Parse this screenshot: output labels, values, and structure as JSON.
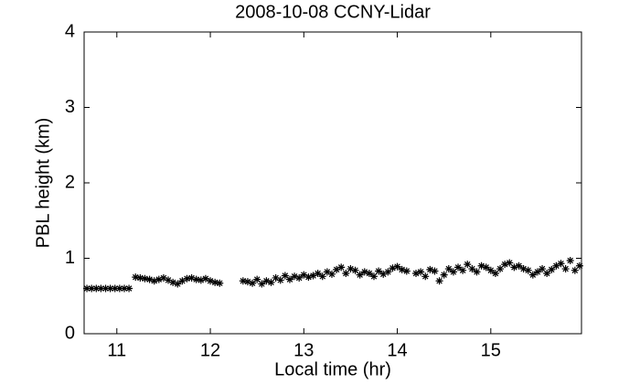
{
  "chart_data": {
    "type": "scatter",
    "title": "2008-10-08 CCNY-Lidar",
    "x_label": "Local time (hr)",
    "y_label": "PBL height (km)",
    "marker": "asterisk",
    "color": "#000000",
    "box": true,
    "xlim": [
      10.65,
      15.97
    ],
    "ylim": [
      0,
      4
    ],
    "xticks": [
      11,
      12,
      13,
      14,
      15
    ],
    "yticks": [
      0,
      1,
      2,
      3,
      4
    ],
    "x": [
      10.68,
      10.73,
      10.78,
      10.83,
      10.88,
      10.93,
      10.98,
      11.03,
      11.08,
      11.13,
      11.2,
      11.25,
      11.3,
      11.35,
      11.4,
      11.45,
      11.5,
      11.55,
      11.6,
      11.65,
      11.7,
      11.75,
      11.8,
      11.85,
      11.9,
      11.95,
      12.0,
      12.05,
      12.1,
      12.35,
      12.4,
      12.45,
      12.5,
      12.55,
      12.6,
      12.65,
      12.7,
      12.75,
      12.8,
      12.85,
      12.9,
      12.95,
      13.0,
      13.05,
      13.1,
      13.15,
      13.2,
      13.25,
      13.3,
      13.35,
      13.4,
      13.45,
      13.5,
      13.55,
      13.6,
      13.65,
      13.7,
      13.75,
      13.8,
      13.85,
      13.9,
      13.95,
      14.0,
      14.05,
      14.1,
      14.2,
      14.25,
      14.3,
      14.35,
      14.4,
      14.45,
      14.5,
      14.55,
      14.6,
      14.65,
      14.7,
      14.75,
      14.8,
      14.85,
      14.9,
      14.95,
      15.0,
      15.05,
      15.1,
      15.15,
      15.2,
      15.25,
      15.3,
      15.35,
      15.4,
      15.45,
      15.5,
      15.55,
      15.6,
      15.65,
      15.7,
      15.75,
      15.8,
      15.85,
      15.9,
      15.95
    ],
    "y": [
      0.6,
      0.6,
      0.6,
      0.6,
      0.6,
      0.6,
      0.6,
      0.6,
      0.6,
      0.6,
      0.75,
      0.74,
      0.73,
      0.72,
      0.7,
      0.72,
      0.74,
      0.71,
      0.68,
      0.66,
      0.7,
      0.73,
      0.74,
      0.72,
      0.71,
      0.73,
      0.7,
      0.68,
      0.67,
      0.7,
      0.69,
      0.67,
      0.72,
      0.66,
      0.7,
      0.68,
      0.74,
      0.71,
      0.77,
      0.72,
      0.76,
      0.74,
      0.78,
      0.75,
      0.77,
      0.8,
      0.76,
      0.82,
      0.79,
      0.85,
      0.88,
      0.8,
      0.86,
      0.84,
      0.78,
      0.82,
      0.8,
      0.76,
      0.83,
      0.79,
      0.82,
      0.87,
      0.89,
      0.85,
      0.83,
      0.8,
      0.82,
      0.76,
      0.85,
      0.83,
      0.7,
      0.78,
      0.86,
      0.82,
      0.88,
      0.84,
      0.92,
      0.86,
      0.82,
      0.9,
      0.88,
      0.84,
      0.8,
      0.86,
      0.92,
      0.94,
      0.88,
      0.9,
      0.86,
      0.84,
      0.78,
      0.82,
      0.86,
      0.8,
      0.85,
      0.9,
      0.93,
      0.86,
      0.97,
      0.84,
      0.9
    ]
  }
}
